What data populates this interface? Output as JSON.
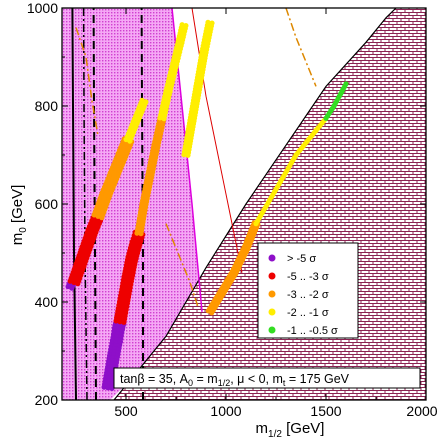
{
  "chart_data": {
    "type": "scatter",
    "xlabel": "m",
    "xlabel_sub": "1/2",
    "xlabel_unit": " [GeV]",
    "ylabel": "m",
    "ylabel_sub": "0",
    "ylabel_unit": " [GeV]",
    "xlim": [
      180,
      2000
    ],
    "ylim": [
      200,
      1000
    ],
    "x_ticks": [
      {
        "value": 500,
        "label": "500"
      },
      {
        "value": 1000,
        "label": "1000"
      },
      {
        "value": 1500,
        "label": "1500"
      },
      {
        "value": 2000,
        "label": "2000"
      }
    ],
    "y_ticks": [
      {
        "value": 200,
        "label": "200"
      },
      {
        "value": 400,
        "label": "400"
      },
      {
        "value": 600,
        "label": "600"
      },
      {
        "value": 800,
        "label": "800"
      },
      {
        "value": 1000,
        "label": "1000"
      }
    ],
    "annotation": {
      "p1": "tanβ = 35, A",
      "s1": "0",
      "p2": " = m",
      "s2": "1/2",
      "p3": ", μ < 0, m",
      "s3": "t",
      "p4": " = 175 GeV"
    },
    "legend": {
      "placement": "lower-right",
      "entries": [
        {
          "label": "> -5 σ",
          "color": "#8e0fc9"
        },
        {
          "label": "-5 .. -3 σ",
          "color": "#ee0000"
        },
        {
          "label": "-3 .. -2 σ",
          "color": "#ff9900"
        },
        {
          "label": "-2 .. -1 σ",
          "color": "#ffee00"
        },
        {
          "label": "-1 .. -0.5 σ",
          "color": "#33dd22"
        }
      ]
    },
    "series": [
      {
        "color": "#8e0fc9",
        "bands": [
          {
            "points": [
              [
                220,
                430
              ],
              [
                235,
                445
              ],
              [
                250,
                460
              ],
              [
                262,
                470
              ],
              [
                272,
                485
              ]
            ],
            "width": 11
          },
          {
            "points": [
              [
                410,
                225
              ],
              [
                425,
                260
              ],
              [
                440,
                295
              ],
              [
                452,
                320
              ],
              [
                462,
                345
              ],
              [
                470,
                360
              ]
            ],
            "width": 14
          }
        ]
      },
      {
        "color": "#ee0000",
        "bands": [
          {
            "points": [
              [
                240,
                440
              ],
              [
                270,
                475
              ],
              [
                300,
                510
              ],
              [
                330,
                545
              ],
              [
                360,
                575
              ]
            ],
            "width": 15
          },
          {
            "points": [
              [
                470,
                360
              ],
              [
                490,
                405
              ],
              [
                510,
                450
              ],
              [
                530,
                490
              ],
              [
                550,
                520
              ],
              [
                565,
                540
              ]
            ],
            "width": 13
          }
        ]
      },
      {
        "color": "#ff9900",
        "bands": [
          {
            "points": [
              [
                360,
                575
              ],
              [
                400,
                620
              ],
              [
                440,
                660
              ],
              [
                480,
                700
              ],
              [
                510,
                730
              ]
            ],
            "width": 13
          },
          {
            "points": [
              [
                565,
                540
              ],
              [
                590,
                600
              ],
              [
                620,
                660
              ],
              [
                650,
                720
              ],
              [
                680,
                775
              ]
            ],
            "width": 11
          },
          {
            "points": [
              [
                920,
                380
              ],
              [
                980,
                420
              ],
              [
                1040,
                460
              ],
              [
                1100,
                510
              ],
              [
                1150,
                560
              ]
            ],
            "width": 8
          }
        ]
      },
      {
        "color": "#ffee00",
        "bands": [
          {
            "points": [
              [
                510,
                730
              ],
              [
                540,
                760
              ],
              [
                570,
                790
              ],
              [
                590,
                810
              ]
            ],
            "width": 9
          },
          {
            "points": [
              [
                680,
                775
              ],
              [
                710,
                830
              ],
              [
                740,
                880
              ],
              [
                770,
                930
              ],
              [
                790,
                965
              ]
            ],
            "width": 10
          },
          {
            "points": [
              [
                800,
                700
              ],
              [
                830,
                770
              ],
              [
                860,
                840
              ],
              [
                890,
                910
              ],
              [
                920,
                970
              ]
            ],
            "width": 8
          },
          {
            "points": [
              [
                1150,
                560
              ],
              [
                1250,
                630
              ],
              [
                1350,
                700
              ],
              [
                1450,
                750
              ],
              [
                1500,
                775
              ]
            ],
            "width": 6
          }
        ]
      },
      {
        "color": "#33dd22",
        "bands": [
          {
            "points": [
              [
                1500,
                775
              ],
              [
                1540,
                800
              ],
              [
                1580,
                830
              ],
              [
                1600,
                845
              ]
            ],
            "width": 4
          }
        ]
      }
    ],
    "excluded_region": {
      "boundary": [
        [
          440,
          200
        ],
        [
          700,
          330
        ],
        [
          900,
          470
        ],
        [
          1100,
          600
        ],
        [
          1300,
          720
        ],
        [
          1500,
          840
        ],
        [
          1700,
          930
        ],
        [
          1800,
          980
        ],
        [
          1850,
          1000
        ]
      ],
      "fill": "#8b2252"
    },
    "shaded_region": {
      "boundary_top": [
        [
          180,
          1000
        ],
        [
          730,
          1000
        ]
      ],
      "boundary_bottom": [
        [
          180,
          380
        ],
        [
          420,
          200
        ]
      ],
      "right_edge": [
        [
          730,
          1000
        ],
        [
          880,
          380
        ]
      ],
      "fill": "#ee88ee"
    },
    "white_region": {
      "points": [
        [
          830,
          1000
        ],
        [
          1850,
          1000
        ],
        [
          1600,
          860
        ],
        [
          1300,
          720
        ],
        [
          1000,
          520
        ],
        [
          900,
          470
        ]
      ],
      "fill": "#ffffff"
    },
    "curves": [
      {
        "color": "#000000",
        "dash": "solid",
        "width": 2,
        "points": [
          [
            250,
            200
          ],
          [
            240,
            500
          ],
          [
            235,
            800
          ],
          [
            232,
            1000
          ]
        ]
      },
      {
        "color": "#000000",
        "dash": "dashdot",
        "width": 1.5,
        "points": [
          [
            305,
            200
          ],
          [
            295,
            500
          ],
          [
            290,
            800
          ],
          [
            288,
            1000
          ]
        ]
      },
      {
        "color": "#000000",
        "dash": "dash",
        "width": 2,
        "points": [
          [
            350,
            200
          ],
          [
            345,
            500
          ],
          [
            340,
            800
          ],
          [
            338,
            1000
          ]
        ]
      },
      {
        "color": "#000000",
        "dash": "dash",
        "width": 2,
        "points": [
          [
            585,
            200
          ],
          [
            585,
            500
          ],
          [
            580,
            800
          ],
          [
            578,
            1000
          ]
        ]
      },
      {
        "color": "#dd00dd",
        "dash": "solid",
        "width": 1.5,
        "points": [
          [
            730,
            1000
          ],
          [
            780,
            800
          ],
          [
            830,
            600
          ],
          [
            880,
            380
          ]
        ]
      },
      {
        "color": "#dd0000",
        "dash": "solid",
        "width": 1,
        "points": [
          [
            830,
            1000
          ],
          [
            900,
            820
          ],
          [
            1000,
            620
          ],
          [
            1080,
            460
          ]
        ]
      },
      {
        "color": "#dd8800",
        "dash": "dashdot",
        "width": 1.5,
        "points": [
          [
            250,
            960
          ],
          [
            300,
            900
          ],
          [
            330,
            810
          ],
          [
            360,
            740
          ]
        ]
      },
      {
        "color": "#dd8800",
        "dash": "dashdot",
        "width": 1.5,
        "points": [
          [
            700,
            560
          ],
          [
            760,
            500
          ],
          [
            820,
            440
          ],
          [
            860,
            390
          ]
        ]
      },
      {
        "color": "#dd8800",
        "dash": "dashdot",
        "width": 1.5,
        "points": [
          [
            1300,
            1000
          ],
          [
            1350,
            940
          ],
          [
            1400,
            890
          ],
          [
            1450,
            840
          ]
        ]
      }
    ]
  }
}
